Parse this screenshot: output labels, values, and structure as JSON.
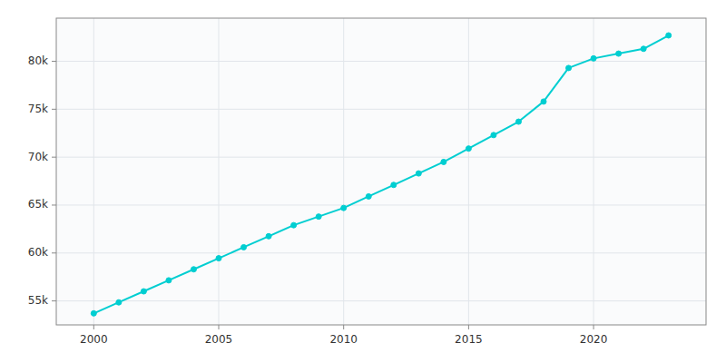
{
  "chart_data": {
    "type": "line",
    "x": [
      2000,
      2001,
      2002,
      2003,
      2004,
      2005,
      2006,
      2007,
      2008,
      2009,
      2010,
      2011,
      2012,
      2013,
      2014,
      2015,
      2016,
      2017,
      2018,
      2019,
      2020,
      2021,
      2022,
      2023
    ],
    "values": [
      53700,
      54850,
      56000,
      57150,
      58300,
      59450,
      60600,
      61750,
      62900,
      63800,
      64700,
      65900,
      67100,
      68300,
      69500,
      70900,
      72300,
      73700,
      75800,
      79300,
      80300,
      80800,
      81300,
      82700
    ],
    "color": "#00CED1",
    "marker": "circle",
    "xlim": [
      1998.5,
      2024.5
    ],
    "ylim": [
      52500,
      84500
    ],
    "xticks": [
      2000,
      2005,
      2010,
      2015,
      2020
    ],
    "yticks": [
      {
        "value": 55000,
        "label": "55k"
      },
      {
        "value": 60000,
        "label": "60k"
      },
      {
        "value": 65000,
        "label": "65k"
      },
      {
        "value": 70000,
        "label": "70k"
      },
      {
        "value": 75000,
        "label": "75k"
      },
      {
        "value": 80000,
        "label": "80k"
      }
    ],
    "grid": true
  }
}
